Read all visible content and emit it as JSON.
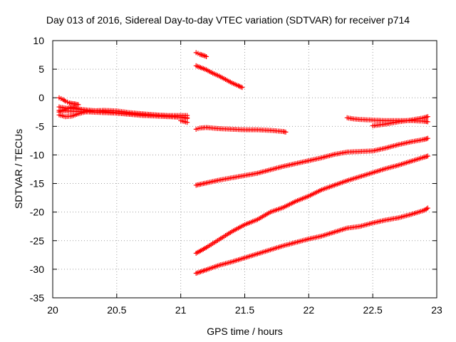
{
  "chart_data": {
    "type": "scatter",
    "title": "Day 013 of 2016, Sidereal Day-to-day VTEC variation (SDTVAR) for receiver p714",
    "xlabel": "GPS time / hours",
    "ylabel": "SDTVAR / TECUs",
    "xlim": [
      20,
      23
    ],
    "ylim": [
      -35,
      10
    ],
    "xticks": [
      20,
      20.5,
      21,
      21.5,
      22,
      22.5,
      23
    ],
    "xtick_labels": [
      "20",
      "20.5",
      "21",
      "21.5",
      "22",
      "22.5",
      "23"
    ],
    "yticks": [
      10,
      5,
      0,
      -5,
      -10,
      -15,
      -20,
      -25,
      -30,
      -35
    ],
    "ytick_labels": [
      "10",
      "5",
      "0",
      "-5",
      "-10",
      "-15",
      "-20",
      "-25",
      "-30",
      "-35"
    ],
    "grid": true,
    "marker": "+",
    "color": "#ff0000",
    "series": [
      {
        "x": [
          20.05,
          20.08,
          20.1,
          20.13,
          20.15,
          20.18,
          20.2
        ],
        "y": [
          0,
          -0.3,
          -0.6,
          -0.9,
          -1.0,
          -1.1,
          -1.2
        ]
      },
      {
        "x": [
          20.05,
          20.1,
          20.2,
          20.3,
          20.4,
          20.5,
          20.6,
          20.7,
          20.8,
          20.9,
          21.0,
          21.05
        ],
        "y": [
          -1.6,
          -1.8,
          -2.0,
          -2.2,
          -2.4,
          -2.6,
          -2.8,
          -2.9,
          -3.0,
          -3.1,
          -3.1,
          -3.1
        ]
      },
      {
        "x": [
          20.05,
          20.1,
          20.2,
          20.3,
          20.4,
          20.5,
          20.6,
          20.7,
          20.8,
          20.9,
          21.0,
          21.05
        ],
        "y": [
          -2.2,
          -2.3,
          -2.4,
          -2.5,
          -2.6,
          -2.7,
          -2.9,
          -3.1,
          -3.2,
          -3.3,
          -3.4,
          -3.5
        ]
      },
      {
        "x": [
          20.05,
          20.1,
          20.15,
          20.2,
          20.25,
          20.3,
          20.4,
          20.5,
          20.6,
          20.7,
          20.8,
          20.9,
          21.0,
          21.05
        ],
        "y": [
          -3.0,
          -3.3,
          -3.2,
          -2.8,
          -2.5,
          -2.3,
          -2.2,
          -2.3,
          -2.6,
          -2.8,
          -3.0,
          -3.2,
          -3.4,
          -3.6
        ]
      },
      {
        "x": [
          20.05,
          20.1,
          20.15,
          20.2,
          20.25,
          20.3
        ],
        "y": [
          -2.5,
          -2.0,
          -1.6,
          -1.9,
          -2.2,
          -2.4
        ]
      },
      {
        "x": [
          21.0,
          21.05
        ],
        "y": [
          -4.0,
          -4.3
        ]
      },
      {
        "x": [
          21.12,
          21.15,
          21.18,
          21.2
        ],
        "y": [
          7.9,
          7.6,
          7.4,
          7.2
        ]
      },
      {
        "x": [
          21.12,
          21.2,
          21.25,
          21.3,
          21.35,
          21.4,
          21.45,
          21.48
        ],
        "y": [
          5.6,
          4.9,
          4.3,
          3.8,
          3.2,
          2.6,
          2.1,
          1.8
        ]
      },
      {
        "x": [
          21.12,
          21.15,
          21.2,
          21.3,
          21.4,
          21.5,
          21.6,
          21.7,
          21.8,
          21.82
        ],
        "y": [
          -5.5,
          -5.3,
          -5.2,
          -5.4,
          -5.5,
          -5.6,
          -5.6,
          -5.7,
          -5.9,
          -6.0
        ]
      },
      {
        "x": [
          21.12,
          21.2,
          21.3,
          21.4,
          21.5,
          21.6,
          21.7,
          21.8,
          21.9,
          22.0,
          22.1,
          22.2,
          22.3,
          22.4,
          22.5,
          22.6,
          22.7,
          22.8,
          22.9,
          22.93
        ],
        "y": [
          -15.3,
          -14.9,
          -14.4,
          -14.0,
          -13.6,
          -13.2,
          -12.6,
          -12.0,
          -11.5,
          -11.0,
          -10.5,
          -9.9,
          -9.5,
          -9.4,
          -9.3,
          -8.8,
          -8.2,
          -7.7,
          -7.3,
          -7.1
        ]
      },
      {
        "x": [
          21.12,
          21.2,
          21.3,
          21.4,
          21.5,
          21.6,
          21.7,
          21.8,
          21.9,
          22.0,
          22.1,
          22.2,
          22.3,
          22.4,
          22.5,
          22.6,
          22.7,
          22.8,
          22.9,
          22.93
        ],
        "y": [
          -27.2,
          -26.2,
          -24.8,
          -23.4,
          -22.2,
          -21.3,
          -20.0,
          -19.2,
          -18.1,
          -17.2,
          -16.1,
          -15.3,
          -14.5,
          -13.8,
          -13.1,
          -12.4,
          -11.8,
          -11.1,
          -10.4,
          -10.2
        ]
      },
      {
        "x": [
          21.12,
          21.2,
          21.3,
          21.4,
          21.5,
          21.6,
          21.7,
          21.8,
          21.9,
          22.0,
          22.1,
          22.2,
          22.3,
          22.4,
          22.5,
          22.6,
          22.7,
          22.8,
          22.9,
          22.93
        ],
        "y": [
          -30.7,
          -30.1,
          -29.3,
          -28.7,
          -28.0,
          -27.3,
          -26.6,
          -25.9,
          -25.3,
          -24.7,
          -24.2,
          -23.5,
          -22.8,
          -22.5,
          -21.9,
          -21.4,
          -21.0,
          -20.4,
          -19.7,
          -19.3
        ]
      },
      {
        "x": [
          22.3,
          22.35,
          22.4,
          22.5,
          22.6,
          22.7,
          22.8,
          22.9,
          22.93
        ],
        "y": [
          -3.5,
          -3.7,
          -3.8,
          -3.9,
          -4.0,
          -4.0,
          -4.0,
          -4.1,
          -4.2
        ]
      },
      {
        "x": [
          22.5,
          22.6,
          22.7,
          22.8,
          22.9,
          22.93
        ],
        "y": [
          -4.9,
          -4.6,
          -4.2,
          -3.9,
          -3.5,
          -3.3
        ]
      }
    ]
  }
}
